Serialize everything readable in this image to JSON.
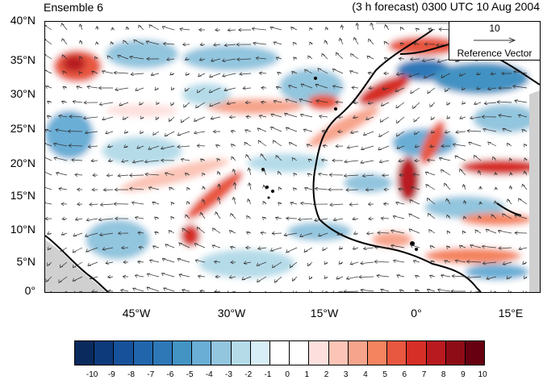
{
  "header": {
    "left_title": "Ensemble 6",
    "right_title": "(3 h forecast) 0300 UTC 10 Aug 2004"
  },
  "axes": {
    "lat_labels": [
      "40°N",
      "35°N",
      "30°N",
      "25°N",
      "20°N",
      "15°N",
      "10°N",
      "5°N",
      "0°"
    ],
    "lon_labels": [
      "45°W",
      "30°W",
      "15°W",
      "0°",
      "15°E"
    ],
    "lat_range": [
      0,
      40
    ],
    "lon_range": [
      -57,
      19
    ]
  },
  "reference_vector": {
    "magnitude": "10",
    "label": "Reference Vector"
  },
  "colorbar": {
    "labels": [
      "-10",
      "-9",
      "-8",
      "-7",
      "-6",
      "-5",
      "-4",
      "-3",
      "-2",
      "-1",
      "0",
      "1",
      "2",
      "3",
      "4",
      "5",
      "6",
      "7",
      "8",
      "9",
      "10"
    ],
    "colors": [
      "#0a2a5e",
      "#0d3a7a",
      "#16519a",
      "#2166ac",
      "#2e78b8",
      "#4393c3",
      "#6aaed6",
      "#92c5de",
      "#b5dbe9",
      "#d8eef6",
      "#ffffff",
      "#ffffff",
      "#fde0dd",
      "#fbc4b6",
      "#f7a48c",
      "#f4845f",
      "#e8573f",
      "#d62f27",
      "#b81a20",
      "#8e0c16",
      "#670010"
    ]
  },
  "colors": {
    "coast": "#000000",
    "land_shade": "#d0d0d0",
    "arrow": "#333333"
  }
}
